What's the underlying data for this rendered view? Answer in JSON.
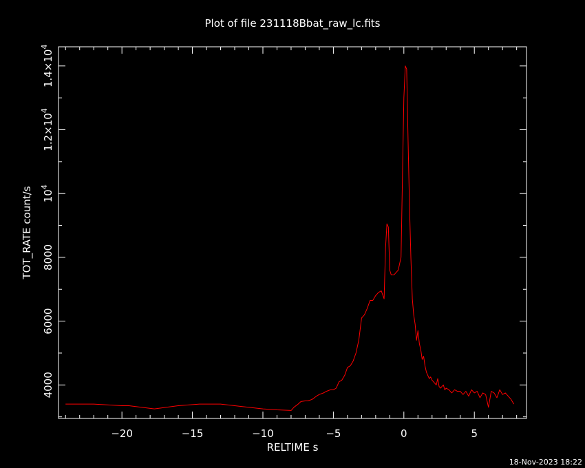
{
  "chart_data": {
    "type": "line",
    "title": "Plot of file 231118Bbat_raw_lc.fits",
    "xlabel": "RELTIME  s",
    "ylabel": "TOT_RATE  count/s",
    "xlim": [
      -24.5,
      8.7
    ],
    "ylim": [
      2950,
      14600
    ],
    "grid": false,
    "x_ticks": [
      {
        "value": -20,
        "label": "−20"
      },
      {
        "value": -15,
        "label": "−15"
      },
      {
        "value": -10,
        "label": "−10"
      },
      {
        "value": -5,
        "label": "−5"
      },
      {
        "value": 0,
        "label": "0"
      },
      {
        "value": 5,
        "label": "5"
      }
    ],
    "y_ticks": [
      {
        "value": 4000,
        "label": "4000",
        "exp": ""
      },
      {
        "value": 6000,
        "label": "6000",
        "exp": ""
      },
      {
        "value": 8000,
        "label": "8000",
        "exp": ""
      },
      {
        "value": 10000,
        "label": "10",
        "exp": "4"
      },
      {
        "value": 12000,
        "label": "1.2×10",
        "exp": "4"
      },
      {
        "value": 14000,
        "label": "1.4×10",
        "exp": "4"
      }
    ],
    "series": [
      {
        "color": "#ff0000",
        "x": [
          -24.0,
          -22.0,
          -20.0,
          -19.5,
          -17.7,
          -16.0,
          -14.5,
          -13.0,
          -12.0,
          -10.0,
          -9.0,
          -8.0,
          -7.8,
          -7.5,
          -7.3,
          -7.0,
          -6.8,
          -6.5,
          -6.2,
          -6.0,
          -5.7,
          -5.5,
          -5.2,
          -5.0,
          -4.8,
          -4.6,
          -4.4,
          -4.2,
          -4.0,
          -3.8,
          -3.6,
          -3.4,
          -3.2,
          -3.0,
          -2.8,
          -2.6,
          -2.4,
          -2.2,
          -2.0,
          -1.8,
          -1.6,
          -1.4,
          -1.3,
          -1.2,
          -1.1,
          -1.0,
          -0.9,
          -0.8,
          -0.7,
          -0.6,
          -0.4,
          -0.2,
          0.0,
          0.1,
          0.2,
          0.3,
          0.4,
          0.5,
          0.6,
          0.7,
          0.8,
          0.9,
          1.0,
          1.1,
          1.2,
          1.3,
          1.4,
          1.5,
          1.6,
          1.7,
          1.8,
          1.9,
          2.0,
          2.1,
          2.2,
          2.3,
          2.4,
          2.5,
          2.6,
          2.7,
          2.8,
          2.9,
          3.0,
          3.2,
          3.4,
          3.6,
          3.8,
          4.0,
          4.2,
          4.4,
          4.6,
          4.8,
          5.0,
          5.2,
          5.4,
          5.6,
          5.8,
          6.0,
          6.2,
          6.4,
          6.6,
          6.8,
          7.0,
          7.2,
          7.4,
          7.6,
          7.8
        ],
        "y": [
          3400,
          3400,
          3350,
          3350,
          3250,
          3350,
          3400,
          3400,
          3350,
          3250,
          3220,
          3200,
          3300,
          3400,
          3480,
          3500,
          3500,
          3550,
          3650,
          3700,
          3750,
          3800,
          3850,
          3850,
          3900,
          4100,
          4150,
          4300,
          4550,
          4600,
          4750,
          5000,
          5400,
          6100,
          6200,
          6400,
          6650,
          6650,
          6800,
          6900,
          6950,
          6700,
          8300,
          9050,
          8950,
          7600,
          7450,
          7450,
          7450,
          7500,
          7600,
          8000,
          13000,
          14000,
          13900,
          11600,
          9600,
          8000,
          6700,
          6200,
          5900,
          5400,
          5700,
          5300,
          5100,
          4800,
          4900,
          4600,
          4400,
          4300,
          4200,
          4250,
          4150,
          4100,
          4050,
          4000,
          4200,
          3950,
          3900,
          3950,
          4000,
          3850,
          3900,
          3850,
          3750,
          3850,
          3800,
          3800,
          3700,
          3800,
          3650,
          3850,
          3750,
          3800,
          3600,
          3750,
          3700,
          3300,
          3800,
          3750,
          3600,
          3850,
          3700,
          3750,
          3650,
          3550,
          3400
        ]
      }
    ]
  },
  "footer": {
    "timestamp": "18-Nov-2023 18:22"
  }
}
